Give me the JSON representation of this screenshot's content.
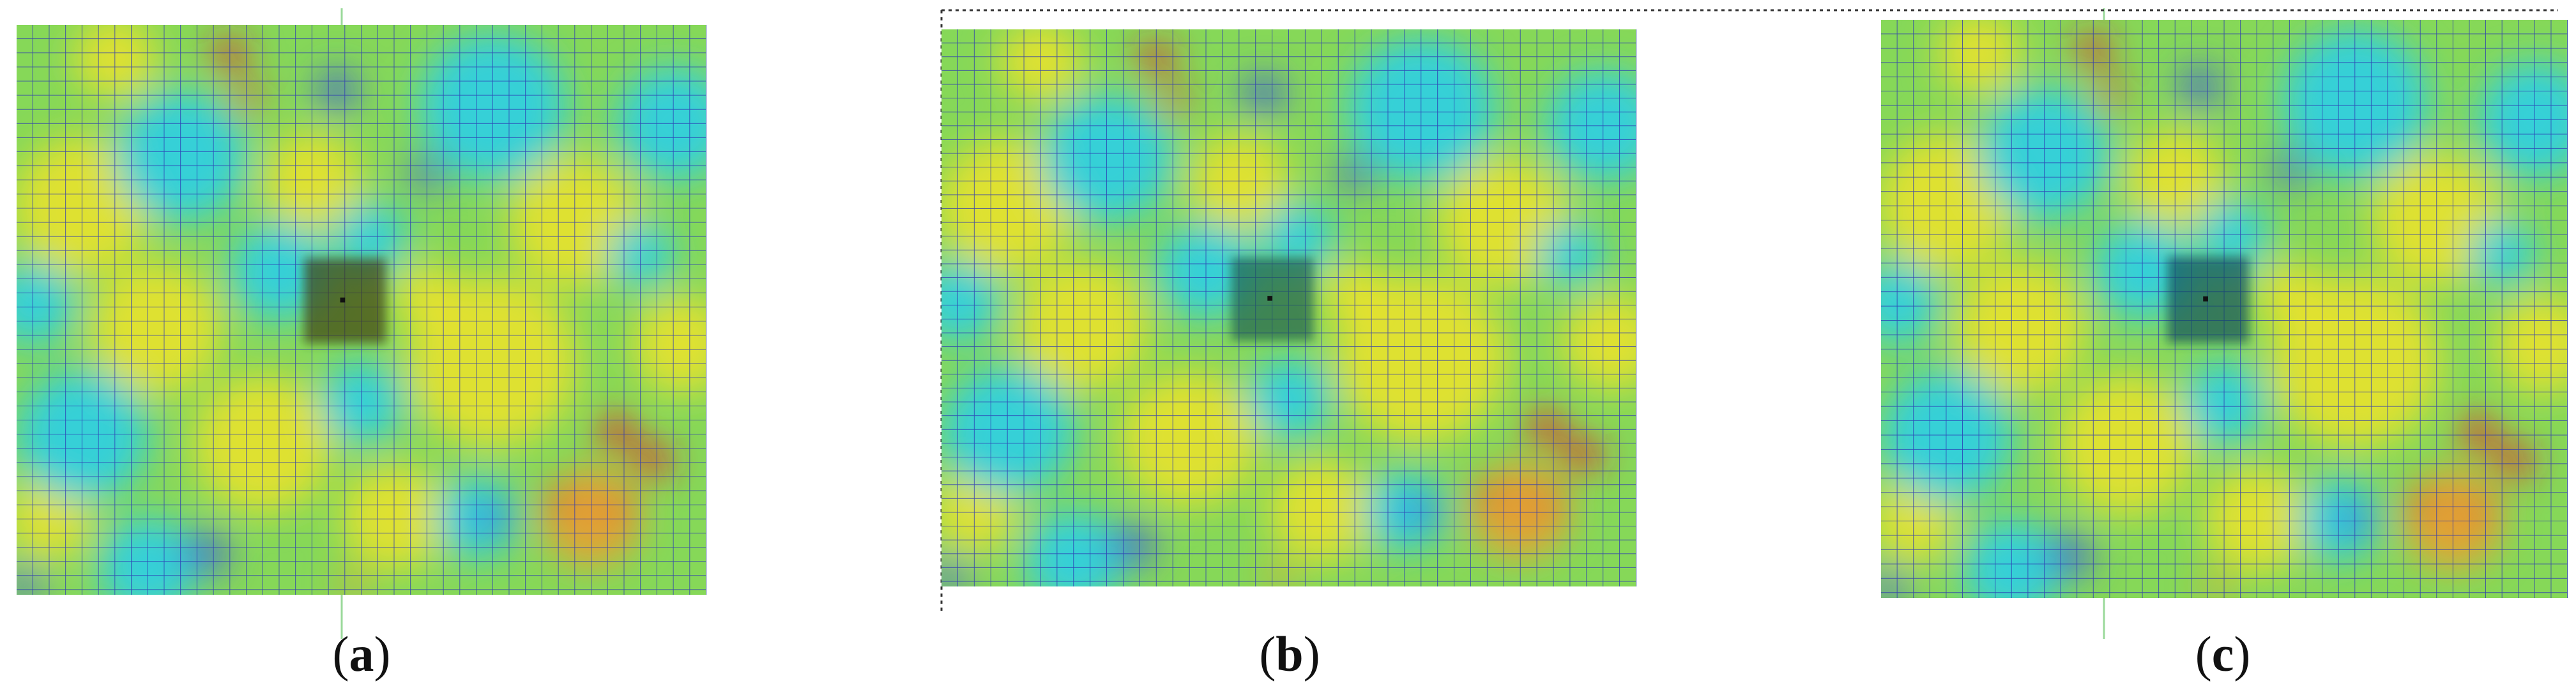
{
  "panels": [
    {
      "open": "(",
      "letter": "a",
      "close": ")"
    },
    {
      "open": "(",
      "letter": "b",
      "close": ")"
    },
    {
      "open": "(",
      "letter": "c",
      "close": ")"
    }
  ]
}
